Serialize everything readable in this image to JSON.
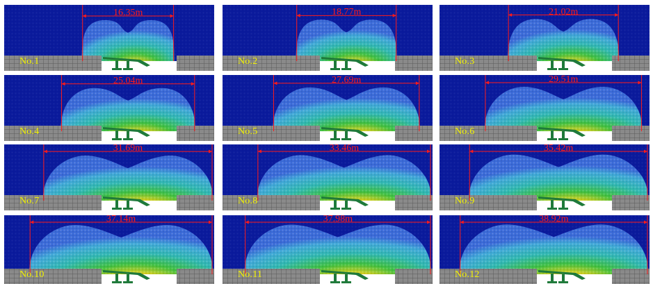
{
  "panels": [
    {
      "label": "No.1",
      "width_label": "16.35m",
      "extent": 0.44
    },
    {
      "label": "No.2",
      "width_label": "18.77m",
      "extent": 0.48
    },
    {
      "label": "No.3",
      "width_label": "21.02m",
      "extent": 0.53
    },
    {
      "label": "No.4",
      "width_label": "25.04m",
      "extent": 0.64
    },
    {
      "label": "No.5",
      "width_label": "27.69m",
      "extent": 0.7
    },
    {
      "label": "No.6",
      "width_label": "29.51m",
      "extent": 0.75
    },
    {
      "label": "No.7",
      "width_label": "31.69m",
      "extent": 0.81
    },
    {
      "label": "No.8",
      "width_label": "33.46m",
      "extent": 0.85
    },
    {
      "label": "No.9",
      "width_label": "35.42m",
      "extent": 0.9
    },
    {
      "label": "No.10",
      "width_label": "37.14m",
      "extent": 0.94
    },
    {
      "label": "No.11",
      "width_label": "37.98m",
      "extent": 0.97
    },
    {
      "label": "No.12",
      "width_label": "38.92m",
      "extent": 0.99
    }
  ],
  "colors": {
    "background": "#0a1a9c",
    "label": "#f0f000",
    "dimension": "#ff1a1a",
    "grid_block": "#808080",
    "support": "#1f7a3a"
  }
}
